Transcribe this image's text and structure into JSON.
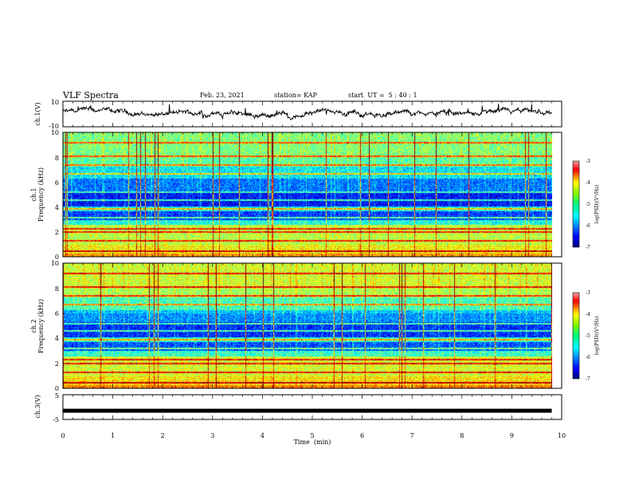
{
  "header": {
    "title": "VLF Spectra",
    "date": "Feb. 23, 2021",
    "station": "station= KAP",
    "start_time": "start  UT =  5 : 40 : 1"
  },
  "chart_data": [
    {
      "type": "line",
      "id": "ch1-waveform",
      "ylabel": "ch.1(V)",
      "ylim": [
        -10,
        10
      ],
      "yticks": [
        "10",
        "-10"
      ],
      "xlim": [
        0,
        10
      ],
      "x_end": 9.8,
      "series": [
        {
          "values_description_level": 3
        }
      ]
    },
    {
      "type": "heatmap",
      "id": "ch1-spectrogram",
      "ylabel_top": "ch.1",
      "ylabel": "Frequency  (kHz)",
      "ylim": [
        0,
        10
      ],
      "yticks": [
        "0",
        "2",
        "4",
        "6",
        "8",
        "10"
      ],
      "xlim": [
        0,
        10
      ],
      "x_end": 9.8,
      "colorbar": {
        "label": "log(PSD)(V²/Hz)",
        "range": [
          -7,
          -3
        ],
        "ticks": [
          "-3",
          "-4",
          "-5",
          "-6",
          "-7"
        ]
      }
    },
    {
      "type": "heatmap",
      "id": "ch2-spectrogram",
      "ylabel_top": "ch.2",
      "ylabel": "Frequency  (kHz)",
      "ylim": [
        0,
        10
      ],
      "yticks": [
        "0",
        "2",
        "4",
        "6",
        "8",
        "10"
      ],
      "xlim": [
        0,
        10
      ],
      "x_end": 9.8,
      "colorbar": {
        "label": "log(PSD)(V²/Hz)",
        "range": [
          -7,
          -3
        ],
        "ticks": [
          "-3",
          "-4",
          "-5",
          "-6",
          "-7"
        ]
      }
    },
    {
      "type": "line",
      "id": "ch3-waveform",
      "ylabel": "ch.3(V)",
      "ylim": [
        -5,
        5
      ],
      "yticks": [
        "5",
        "-5"
      ],
      "xlim": [
        0,
        10
      ],
      "x_end": 9.8,
      "series": [
        {
          "level": -1.5
        }
      ]
    }
  ],
  "x_axis": {
    "label": "Time  (min)",
    "ticks": [
      "0",
      "1",
      "2",
      "3",
      "4",
      "5",
      "6",
      "7",
      "8",
      "9",
      "10"
    ]
  },
  "colors": {
    "jet": [
      "#00007f",
      "#0000ff",
      "#00ffff",
      "#00ff7f",
      "#7fff00",
      "#ffff00",
      "#ff0000",
      "#7f0000"
    ]
  }
}
